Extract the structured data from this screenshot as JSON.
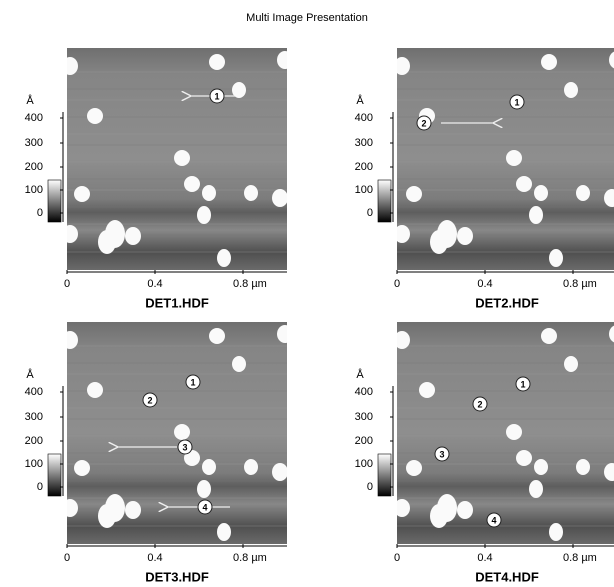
{
  "title": "Multi Image Presentation",
  "scale": {
    "unit": "Å",
    "labels": [
      "400",
      "300",
      "200",
      "100",
      "0"
    ]
  },
  "x_axis": {
    "labels": [
      "0",
      "0.4",
      "0.8 µm"
    ]
  },
  "panels": [
    {
      "name": "DET1.HDF",
      "markers": [
        "1"
      ]
    },
    {
      "name": "DET2.HDF",
      "markers": [
        "2",
        "1"
      ]
    },
    {
      "name": "DET3.HDF",
      "markers": [
        "1",
        "2",
        "3",
        "4"
      ]
    },
    {
      "name": "DET4.HDF",
      "markers": [
        "1",
        "2",
        "3",
        "4"
      ]
    }
  ]
}
